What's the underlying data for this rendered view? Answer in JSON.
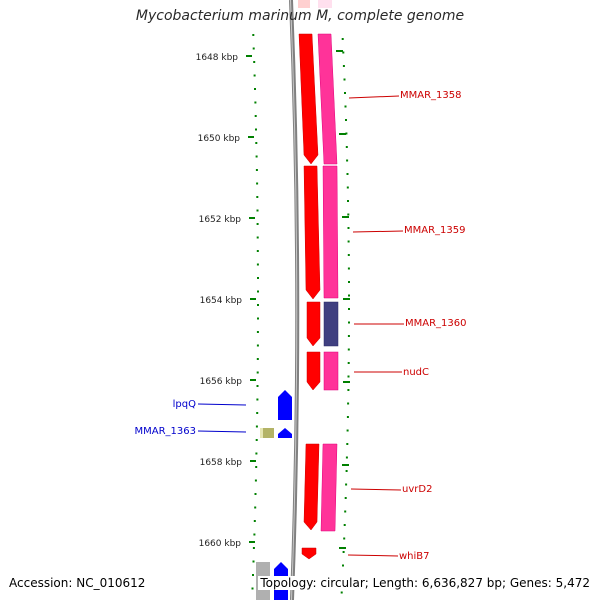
{
  "title": "Mycobacterium marinum M, complete genome",
  "accession": "Accession: NC_010612",
  "topology": "Topology: circular; Length: 6,636,827 bp; Genes: 5,472",
  "colors": {
    "tick": "#008000",
    "backbone": "#808080",
    "forward_gene": "#ff0000",
    "forward_cds": "#ff3399",
    "purple_cds": "#404080",
    "reverse_gene": "#0000ff",
    "olive_cds": "#b3b366",
    "gray_feature": "#b0b0b0",
    "label_forward": "#cc0000",
    "label_reverse": "#0000cc"
  },
  "scale_labels": [
    "1648 kbp",
    "1650 kbp",
    "1652 kbp",
    "1654 kbp",
    "1656 kbp",
    "1658 kbp",
    "1660 kbp"
  ],
  "gene_labels": {
    "forward": [
      "MMAR_1358",
      "MMAR_1359",
      "MMAR_1360",
      "nudC",
      "uvrD2",
      "whiB7"
    ],
    "reverse": [
      "lpqQ",
      "MMAR_1363"
    ]
  }
}
